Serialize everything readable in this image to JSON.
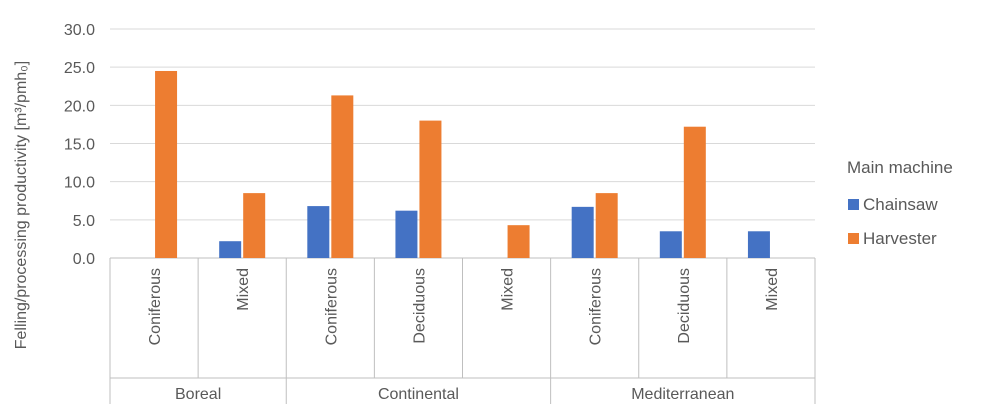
{
  "chart_data": {
    "type": "bar",
    "ylabel": "Felling/processing productivity [m³/pmh₀]",
    "ylim": [
      0,
      30
    ],
    "yticks": [
      "0.0",
      "5.0",
      "10.0",
      "15.0",
      "20.0",
      "25.0",
      "30.0"
    ],
    "grid": true,
    "legend_position": "right",
    "legend_title": "Main machine",
    "groups": [
      {
        "name": "Boreal",
        "categories": [
          "Coniferous",
          "Mixed"
        ]
      },
      {
        "name": "Continental",
        "categories": [
          "Coniferous",
          "Deciduous",
          "Mixed"
        ]
      },
      {
        "name": "Mediterranean",
        "categories": [
          "Coniferous",
          "Deciduous",
          "Mixed"
        ]
      }
    ],
    "categories": [
      "Boreal - Coniferous",
      "Boreal - Mixed",
      "Continental - Coniferous",
      "Continental - Deciduous",
      "Continental - Mixed",
      "Mediterranean - Coniferous",
      "Mediterranean - Deciduous",
      "Mediterranean - Mixed"
    ],
    "series": [
      {
        "name": "Chainsaw",
        "color": "#4472C4",
        "values": [
          null,
          2.2,
          6.8,
          6.2,
          null,
          6.7,
          3.5,
          3.5
        ]
      },
      {
        "name": "Harvester",
        "color": "#ED7D31",
        "values": [
          24.5,
          8.5,
          21.3,
          18.0,
          4.3,
          8.5,
          17.2,
          null
        ]
      }
    ]
  }
}
